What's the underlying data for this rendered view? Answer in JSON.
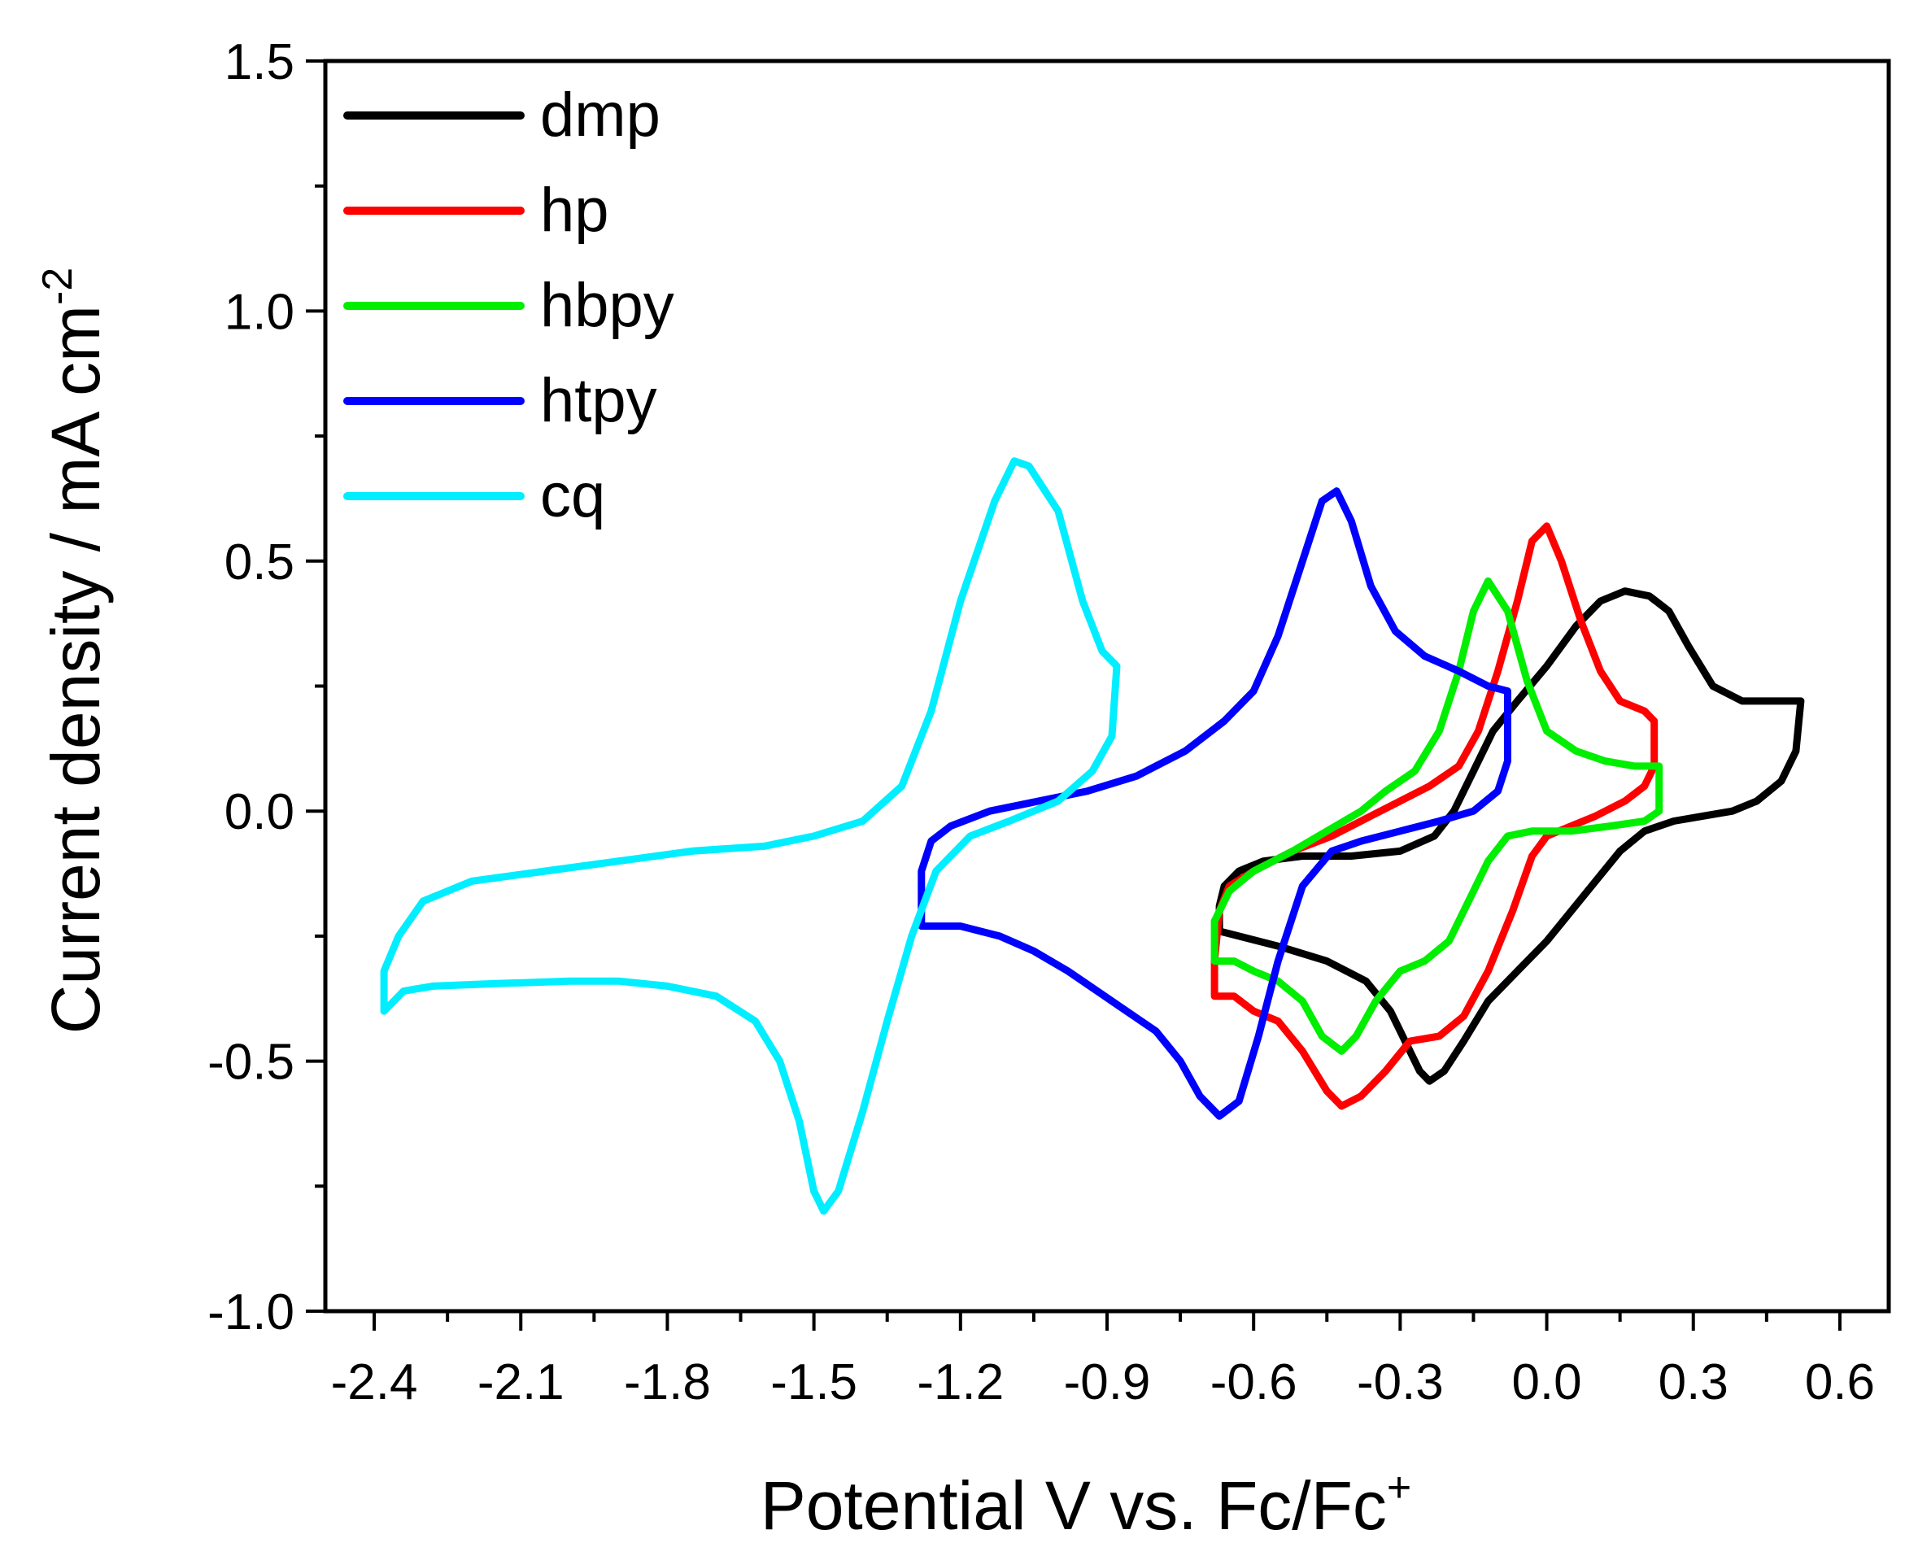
{
  "chart_data": {
    "type": "line",
    "title": "",
    "xlabel": "Potential V vs. Fc/Fc",
    "xlabel_sup": "+",
    "ylabel": "Current density / mA cm",
    "ylabel_sup": "-2",
    "xlim": [
      -2.5,
      0.7
    ],
    "ylim": [
      -1.0,
      1.5
    ],
    "xticks": [
      -2.4,
      -2.1,
      -1.8,
      -1.5,
      -1.2,
      -0.9,
      -0.6,
      -0.3,
      0.0,
      0.3,
      0.6
    ],
    "xtick_labels": [
      "-2.4",
      "-2.1",
      "-1.8",
      "-1.5",
      "-1.2",
      "-0.9",
      "-0.6",
      "-0.3",
      "0.0",
      "0.3",
      "0.6"
    ],
    "yticks": [
      -1.0,
      -0.5,
      0.0,
      0.5,
      1.0,
      1.5
    ],
    "ytick_labels": [
      "-1.0",
      "-0.5",
      "0.0",
      "0.5",
      "1.0",
      "1.5"
    ],
    "grid": false,
    "legend_position": "top-left",
    "series": [
      {
        "name": "dmp",
        "color": "#000000",
        "points": [
          [
            -0.67,
            -0.24
          ],
          [
            -0.55,
            -0.27
          ],
          [
            -0.45,
            -0.3
          ],
          [
            -0.37,
            -0.34
          ],
          [
            -0.32,
            -0.4
          ],
          [
            -0.28,
            -0.48
          ],
          [
            -0.26,
            -0.52
          ],
          [
            -0.24,
            -0.54
          ],
          [
            -0.21,
            -0.52
          ],
          [
            -0.17,
            -0.46
          ],
          [
            -0.12,
            -0.38
          ],
          [
            -0.06,
            -0.32
          ],
          [
            0.0,
            -0.26
          ],
          [
            0.05,
            -0.2
          ],
          [
            0.1,
            -0.14
          ],
          [
            0.15,
            -0.08
          ],
          [
            0.2,
            -0.04
          ],
          [
            0.26,
            -0.02
          ],
          [
            0.32,
            -0.01
          ],
          [
            0.38,
            0.0
          ],
          [
            0.43,
            0.02
          ],
          [
            0.48,
            0.06
          ],
          [
            0.51,
            0.12
          ],
          [
            0.52,
            0.22
          ],
          [
            0.47,
            0.22
          ],
          [
            0.4,
            0.22
          ],
          [
            0.34,
            0.25
          ],
          [
            0.29,
            0.33
          ],
          [
            0.25,
            0.4
          ],
          [
            0.21,
            0.43
          ],
          [
            0.16,
            0.44
          ],
          [
            0.11,
            0.42
          ],
          [
            0.06,
            0.37
          ],
          [
            0.0,
            0.29
          ],
          [
            -0.06,
            0.22
          ],
          [
            -0.11,
            0.16
          ],
          [
            -0.15,
            0.08
          ],
          [
            -0.19,
            0.0
          ],
          [
            -0.23,
            -0.05
          ],
          [
            -0.3,
            -0.08
          ],
          [
            -0.4,
            -0.09
          ],
          [
            -0.5,
            -0.09
          ],
          [
            -0.58,
            -0.1
          ],
          [
            -0.63,
            -0.12
          ],
          [
            -0.66,
            -0.15
          ],
          [
            -0.67,
            -0.19
          ],
          [
            -0.67,
            -0.24
          ]
        ]
      },
      {
        "name": "hp",
        "color": "#ff0000",
        "points": [
          [
            -0.68,
            -0.37
          ],
          [
            -0.64,
            -0.37
          ],
          [
            -0.6,
            -0.4
          ],
          [
            -0.55,
            -0.42
          ],
          [
            -0.5,
            -0.48
          ],
          [
            -0.45,
            -0.56
          ],
          [
            -0.42,
            -0.59
          ],
          [
            -0.38,
            -0.57
          ],
          [
            -0.33,
            -0.52
          ],
          [
            -0.28,
            -0.46
          ],
          [
            -0.22,
            -0.45
          ],
          [
            -0.17,
            -0.41
          ],
          [
            -0.12,
            -0.32
          ],
          [
            -0.07,
            -0.2
          ],
          [
            -0.03,
            -0.09
          ],
          [
            0.0,
            -0.05
          ],
          [
            0.05,
            -0.03
          ],
          [
            0.1,
            -0.01
          ],
          [
            0.16,
            0.02
          ],
          [
            0.2,
            0.05
          ],
          [
            0.22,
            0.09
          ],
          [
            0.22,
            0.18
          ],
          [
            0.2,
            0.2
          ],
          [
            0.15,
            0.22
          ],
          [
            0.11,
            0.28
          ],
          [
            0.07,
            0.38
          ],
          [
            0.03,
            0.5
          ],
          [
            0.0,
            0.57
          ],
          [
            -0.03,
            0.54
          ],
          [
            -0.06,
            0.42
          ],
          [
            -0.1,
            0.28
          ],
          [
            -0.14,
            0.16
          ],
          [
            -0.18,
            0.09
          ],
          [
            -0.24,
            0.05
          ],
          [
            -0.3,
            0.02
          ],
          [
            -0.36,
            -0.01
          ],
          [
            -0.44,
            -0.05
          ],
          [
            -0.52,
            -0.08
          ],
          [
            -0.6,
            -0.12
          ],
          [
            -0.65,
            -0.15
          ],
          [
            -0.67,
            -0.2
          ],
          [
            -0.68,
            -0.3
          ],
          [
            -0.68,
            -0.37
          ]
        ]
      },
      {
        "name": "hbpy",
        "color": "#00ee00",
        "points": [
          [
            -0.68,
            -0.3
          ],
          [
            -0.64,
            -0.3
          ],
          [
            -0.6,
            -0.32
          ],
          [
            -0.55,
            -0.34
          ],
          [
            -0.5,
            -0.38
          ],
          [
            -0.46,
            -0.45
          ],
          [
            -0.42,
            -0.48
          ],
          [
            -0.39,
            -0.45
          ],
          [
            -0.35,
            -0.38
          ],
          [
            -0.3,
            -0.32
          ],
          [
            -0.25,
            -0.3
          ],
          [
            -0.2,
            -0.26
          ],
          [
            -0.16,
            -0.18
          ],
          [
            -0.12,
            -0.1
          ],
          [
            -0.08,
            -0.05
          ],
          [
            -0.03,
            -0.04
          ],
          [
            0.05,
            -0.04
          ],
          [
            0.13,
            -0.03
          ],
          [
            0.2,
            -0.02
          ],
          [
            0.23,
            0.0
          ],
          [
            0.23,
            0.09
          ],
          [
            0.18,
            0.09
          ],
          [
            0.12,
            0.1
          ],
          [
            0.06,
            0.12
          ],
          [
            0.0,
            0.16
          ],
          [
            -0.04,
            0.26
          ],
          [
            -0.08,
            0.4
          ],
          [
            -0.12,
            0.46
          ],
          [
            -0.15,
            0.4
          ],
          [
            -0.18,
            0.28
          ],
          [
            -0.22,
            0.16
          ],
          [
            -0.27,
            0.08
          ],
          [
            -0.33,
            0.04
          ],
          [
            -0.38,
            0.0
          ],
          [
            -0.45,
            -0.04
          ],
          [
            -0.52,
            -0.08
          ],
          [
            -0.6,
            -0.12
          ],
          [
            -0.65,
            -0.16
          ],
          [
            -0.68,
            -0.22
          ],
          [
            -0.68,
            -0.3
          ]
        ]
      },
      {
        "name": "htpy",
        "color": "#0000ff",
        "points": [
          [
            -1.28,
            -0.23
          ],
          [
            -1.2,
            -0.23
          ],
          [
            -1.12,
            -0.25
          ],
          [
            -1.05,
            -0.28
          ],
          [
            -0.98,
            -0.32
          ],
          [
            -0.92,
            -0.36
          ],
          [
            -0.86,
            -0.4
          ],
          [
            -0.8,
            -0.44
          ],
          [
            -0.75,
            -0.5
          ],
          [
            -0.71,
            -0.57
          ],
          [
            -0.67,
            -0.61
          ],
          [
            -0.63,
            -0.58
          ],
          [
            -0.59,
            -0.45
          ],
          [
            -0.55,
            -0.3
          ],
          [
            -0.5,
            -0.15
          ],
          [
            -0.44,
            -0.08
          ],
          [
            -0.38,
            -0.06
          ],
          [
            -0.3,
            -0.04
          ],
          [
            -0.22,
            -0.02
          ],
          [
            -0.15,
            0.0
          ],
          [
            -0.1,
            0.04
          ],
          [
            -0.08,
            0.1
          ],
          [
            -0.08,
            0.24
          ],
          [
            -0.12,
            0.25
          ],
          [
            -0.18,
            0.28
          ],
          [
            -0.25,
            0.31
          ],
          [
            -0.31,
            0.36
          ],
          [
            -0.36,
            0.45
          ],
          [
            -0.4,
            0.58
          ],
          [
            -0.43,
            0.64
          ],
          [
            -0.46,
            0.62
          ],
          [
            -0.5,
            0.5
          ],
          [
            -0.55,
            0.35
          ],
          [
            -0.6,
            0.24
          ],
          [
            -0.66,
            0.18
          ],
          [
            -0.74,
            0.12
          ],
          [
            -0.84,
            0.07
          ],
          [
            -0.94,
            0.04
          ],
          [
            -1.04,
            0.02
          ],
          [
            -1.14,
            0.0
          ],
          [
            -1.22,
            -0.03
          ],
          [
            -1.26,
            -0.06
          ],
          [
            -1.28,
            -0.12
          ],
          [
            -1.28,
            -0.23
          ]
        ]
      },
      {
        "name": "cq",
        "color": "#00eeff",
        "points": [
          [
            -2.38,
            -0.4
          ],
          [
            -2.34,
            -0.36
          ],
          [
            -2.28,
            -0.35
          ],
          [
            -2.15,
            -0.345
          ],
          [
            -2.0,
            -0.34
          ],
          [
            -1.9,
            -0.34
          ],
          [
            -1.8,
            -0.35
          ],
          [
            -1.7,
            -0.37
          ],
          [
            -1.62,
            -0.42
          ],
          [
            -1.57,
            -0.5
          ],
          [
            -1.53,
            -0.62
          ],
          [
            -1.5,
            -0.76
          ],
          [
            -1.48,
            -0.8
          ],
          [
            -1.45,
            -0.76
          ],
          [
            -1.4,
            -0.6
          ],
          [
            -1.35,
            -0.42
          ],
          [
            -1.3,
            -0.25
          ],
          [
            -1.25,
            -0.12
          ],
          [
            -1.18,
            -0.05
          ],
          [
            -1.1,
            -0.02
          ],
          [
            -1.0,
            0.02
          ],
          [
            -0.93,
            0.08
          ],
          [
            -0.89,
            0.15
          ],
          [
            -0.88,
            0.29
          ],
          [
            -0.91,
            0.32
          ],
          [
            -0.95,
            0.42
          ],
          [
            -1.0,
            0.6
          ],
          [
            -1.06,
            0.69
          ],
          [
            -1.09,
            0.7
          ],
          [
            -1.13,
            0.62
          ],
          [
            -1.2,
            0.42
          ],
          [
            -1.26,
            0.2
          ],
          [
            -1.32,
            0.05
          ],
          [
            -1.4,
            -0.02
          ],
          [
            -1.5,
            -0.05
          ],
          [
            -1.6,
            -0.07
          ],
          [
            -1.75,
            -0.08
          ],
          [
            -1.9,
            -0.1
          ],
          [
            -2.05,
            -0.12
          ],
          [
            -2.2,
            -0.14
          ],
          [
            -2.3,
            -0.18
          ],
          [
            -2.35,
            -0.25
          ],
          [
            -2.38,
            -0.32
          ],
          [
            -2.38,
            -0.4
          ]
        ]
      }
    ]
  }
}
